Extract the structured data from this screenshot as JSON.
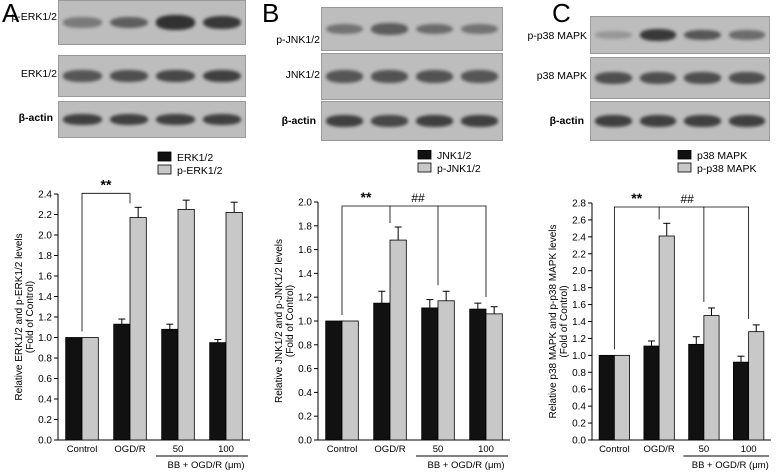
{
  "figure": {
    "panels": [
      {
        "letter": "A",
        "blots": [
          "p-ERK1/2",
          "ERK1/2",
          "β-actin"
        ],
        "bands": [
          [
            0.45,
            0.65,
            0.95,
            0.9
          ],
          [
            0.7,
            0.75,
            0.8,
            0.85
          ],
          [
            0.85,
            0.85,
            0.85,
            0.85
          ]
        ]
      },
      {
        "letter": "B",
        "blots": [
          "p-JNK1/2",
          "JNK1/2",
          "β-actin"
        ],
        "bands": [
          [
            0.5,
            0.65,
            0.55,
            0.5
          ],
          [
            0.7,
            0.72,
            0.72,
            0.7
          ],
          [
            0.85,
            0.8,
            0.85,
            0.85
          ]
        ]
      },
      {
        "letter": "C",
        "blots": [
          "p-p38 MAPK",
          "p38 MAPK",
          "β-actin"
        ],
        "bands": [
          [
            0.25,
            0.9,
            0.7,
            0.55
          ],
          [
            0.75,
            0.75,
            0.75,
            0.75
          ],
          [
            0.85,
            0.85,
            0.85,
            0.85
          ]
        ]
      }
    ]
  },
  "chart_data": [
    {
      "type": "bar",
      "categories": [
        "Control",
        "OGD/R",
        "50",
        "100"
      ],
      "group_label": "BB + OGD/R (μm)",
      "series": [
        {
          "name": "ERK1/2",
          "values": [
            1.0,
            1.13,
            1.08,
            0.95
          ],
          "errors": [
            0,
            0.05,
            0.05,
            0.03
          ]
        },
        {
          "name": "p-ERK1/2",
          "values": [
            1.0,
            2.17,
            2.25,
            2.22
          ],
          "errors": [
            0,
            0.1,
            0.09,
            0.1
          ]
        }
      ],
      "ylabel": "Relative ERK1/2 and p-ERK1/2 levels",
      "ylabel2": "(Fold of Control)",
      "ylim": [
        0,
        2.4
      ],
      "yticks": [
        "0.0",
        "0.2",
        "0.4",
        "0.6",
        "0.8",
        "1.0",
        "1.2",
        "1.4",
        "1.6",
        "1.8",
        "2.0",
        "2.2",
        "2.4"
      ],
      "colors": [
        "#111111",
        "#c8c8c8"
      ],
      "legend": "top-right",
      "annotations": [
        {
          "text": "**",
          "between": [
            "Control",
            "OGD/R"
          ]
        }
      ],
      "grid": false
    },
    {
      "type": "bar",
      "categories": [
        "Control",
        "OGD/R",
        "50",
        "100"
      ],
      "group_label": "BB + OGD/R (μm)",
      "series": [
        {
          "name": "JNK1/2",
          "values": [
            1.0,
            1.15,
            1.11,
            1.1
          ],
          "errors": [
            0,
            0.1,
            0.07,
            0.05
          ]
        },
        {
          "name": "p-JNK1/2",
          "values": [
            1.0,
            1.68,
            1.17,
            1.06
          ],
          "errors": [
            0,
            0.11,
            0.08,
            0.06
          ]
        }
      ],
      "ylabel": "Relative JNK1/2 and p-JNK1/2 levels",
      "ylabel2": "(Fold of Control)",
      "ylim": [
        0,
        2.0
      ],
      "yticks": [
        "0.0",
        "0.2",
        "0.4",
        "0.6",
        "0.8",
        "1.0",
        "1.2",
        "1.4",
        "1.6",
        "1.8",
        "2.0"
      ],
      "colors": [
        "#111111",
        "#c8c8c8"
      ],
      "legend": "top-right",
      "annotations": [
        {
          "text": "**",
          "between": [
            "Control",
            "OGD/R"
          ]
        },
        {
          "text": "##",
          "between": [
            "OGD/R",
            "50",
            "100"
          ]
        }
      ],
      "grid": false
    },
    {
      "type": "bar",
      "categories": [
        "Control",
        "OGD/R",
        "50",
        "100"
      ],
      "group_label": "BB + OGD/R (μm)",
      "series": [
        {
          "name": "p38 MAPK",
          "values": [
            1.0,
            1.11,
            1.13,
            0.92
          ],
          "errors": [
            0,
            0.06,
            0.09,
            0.07
          ]
        },
        {
          "name": "p-p38 MAPK",
          "values": [
            1.0,
            2.41,
            1.47,
            1.28
          ],
          "errors": [
            0,
            0.15,
            0.09,
            0.08
          ]
        }
      ],
      "ylabel": "Relative p38 MAPK and p-p38 MAPK levels",
      "ylabel2": "(Fold of Control)",
      "ylim": [
        0,
        2.8
      ],
      "yticks": [
        "0.0",
        "0.2",
        "0.4",
        "0.6",
        "0.8",
        "1.0",
        "1.2",
        "1.4",
        "1.6",
        "1.8",
        "2.0",
        "2.2",
        "2.4",
        "2.6",
        "2.8"
      ],
      "colors": [
        "#111111",
        "#c8c8c8"
      ],
      "legend": "top-right",
      "annotations": [
        {
          "text": "**",
          "between": [
            "Control",
            "OGD/R"
          ]
        },
        {
          "text": "##",
          "between": [
            "OGD/R",
            "50",
            "100"
          ]
        }
      ],
      "grid": false
    }
  ]
}
